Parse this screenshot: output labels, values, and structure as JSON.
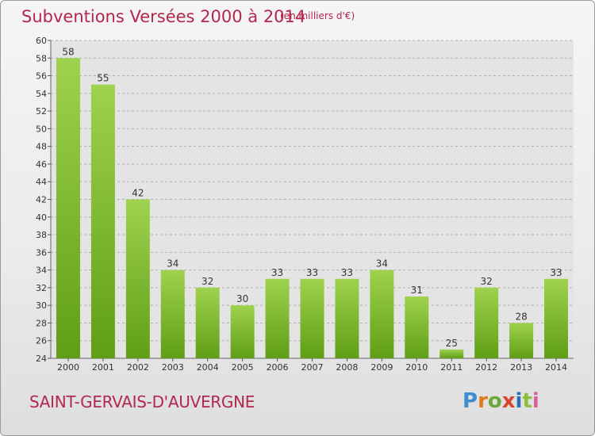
{
  "title": "Subventions Versées 2000 à 2014",
  "subtitle": "(en milliers d'€)",
  "commune": "SAINT-GERVAIS-D'AUVERGNE",
  "logo": "Proxiti",
  "colors": {
    "title": "#b3274f",
    "bar_light": "#9fd24e",
    "bar_dark": "#5f9e16",
    "plot_background": "#e4e4e4",
    "grid": "#b0b0b0"
  },
  "chart_data": {
    "type": "bar",
    "title": "Subventions Versées 2000 à 2014",
    "subtitle": "(en milliers d'€)",
    "categories": [
      "2000",
      "2001",
      "2002",
      "2003",
      "2004",
      "2005",
      "2006",
      "2007",
      "2008",
      "2009",
      "2010",
      "2011",
      "2012",
      "2013",
      "2014"
    ],
    "values": [
      58,
      55,
      42,
      34,
      32,
      30,
      33,
      33,
      33,
      34,
      31,
      25,
      32,
      28,
      33
    ],
    "ylim": [
      24,
      60
    ],
    "yticks": [
      24,
      26,
      28,
      30,
      32,
      34,
      36,
      38,
      40,
      42,
      44,
      46,
      48,
      50,
      52,
      54,
      56,
      58,
      60
    ],
    "grid": "horizontal dashed",
    "legend": "none",
    "data_labels": true
  }
}
